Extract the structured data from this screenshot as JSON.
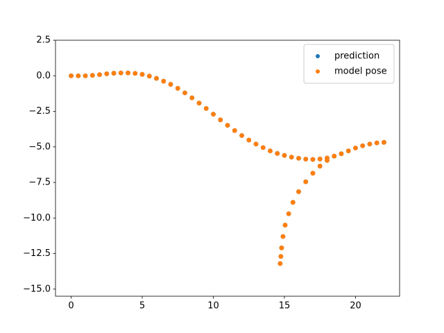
{
  "chart_data": {
    "type": "scatter",
    "xlim": [
      -1.1,
      23.1
    ],
    "ylim": [
      -15.5,
      2.5
    ],
    "xticks": [
      0,
      5,
      10,
      15,
      20
    ],
    "yticks": [
      2.5,
      {
        "value": 0,
        "label": "0.0"
      },
      {
        "value": -2.5,
        "label": "−2.5"
      },
      {
        "value": -5,
        "label": "−5.0"
      },
      {
        "value": -7.5,
        "label": "−7.5"
      },
      {
        "value": -10,
        "label": "−10.0"
      },
      {
        "value": -12.5,
        "label": "−12.5"
      },
      {
        "value": -15,
        "label": "−15.0"
      }
    ],
    "legend": "upper right",
    "series": [
      {
        "name": "prediction",
        "color": "#1f77b4",
        "x": [
          0,
          0.5,
          1,
          1.5,
          2,
          2.5,
          3,
          3.5,
          4,
          4.5,
          5,
          5.5,
          6,
          6.5,
          7,
          7.5,
          8,
          8.5,
          9,
          9.5,
          10,
          10.5,
          11,
          11.5,
          12,
          12.5,
          13,
          13.5,
          14,
          14.5,
          15,
          15.5,
          16,
          16.5,
          17,
          17.5,
          18,
          18.5,
          19,
          19.5,
          20,
          20.5,
          21,
          21.5,
          22,
          18,
          17.5,
          17,
          16.5,
          16,
          15.6,
          15.3,
          15.05,
          14.9,
          14.8,
          14.75,
          14.7
        ],
        "values": [
          0,
          0,
          0,
          0.03,
          0.08,
          0.14,
          0.18,
          0.2,
          0.2,
          0.17,
          0.1,
          -0.02,
          -0.18,
          -0.38,
          -0.6,
          -0.88,
          -1.2,
          -1.55,
          -1.92,
          -2.3,
          -2.7,
          -3.1,
          -3.48,
          -3.85,
          -4.2,
          -4.52,
          -4.8,
          -5.05,
          -5.28,
          -5.46,
          -5.6,
          -5.72,
          -5.8,
          -5.86,
          -5.88,
          -5.85,
          -5.78,
          -5.65,
          -5.48,
          -5.28,
          -5.08,
          -4.92,
          -4.8,
          -4.72,
          -4.68,
          -5.95,
          -6.35,
          -6.85,
          -7.45,
          -8.15,
          -8.9,
          -9.7,
          -10.5,
          -11.3,
          -12.1,
          -12.7,
          -13.2
        ]
      },
      {
        "name": "model pose",
        "color": "#ff7f0e",
        "x": [
          0,
          0.5,
          1,
          1.5,
          2,
          2.5,
          3,
          3.5,
          4,
          4.5,
          5,
          5.5,
          6,
          6.5,
          7,
          7.5,
          8,
          8.5,
          9,
          9.5,
          10,
          10.5,
          11,
          11.5,
          12,
          12.5,
          13,
          13.5,
          14,
          14.5,
          15,
          15.5,
          16,
          16.5,
          17,
          17.5,
          18,
          18.5,
          19,
          19.5,
          20,
          20.5,
          21,
          21.5,
          22,
          18,
          17.5,
          17,
          16.5,
          16,
          15.6,
          15.3,
          15.05,
          14.9,
          14.8,
          14.75,
          14.7
        ],
        "values": [
          0,
          0,
          0,
          0.03,
          0.08,
          0.14,
          0.18,
          0.2,
          0.2,
          0.17,
          0.1,
          -0.02,
          -0.18,
          -0.38,
          -0.6,
          -0.88,
          -1.2,
          -1.55,
          -1.92,
          -2.3,
          -2.7,
          -3.1,
          -3.48,
          -3.85,
          -4.2,
          -4.52,
          -4.8,
          -5.05,
          -5.28,
          -5.46,
          -5.6,
          -5.72,
          -5.8,
          -5.86,
          -5.88,
          -5.85,
          -5.78,
          -5.65,
          -5.48,
          -5.28,
          -5.08,
          -4.92,
          -4.8,
          -4.72,
          -4.68,
          -5.95,
          -6.35,
          -6.85,
          -7.45,
          -8.15,
          -8.9,
          -9.7,
          -10.5,
          -11.3,
          -12.1,
          -12.7,
          -13.2
        ]
      }
    ]
  }
}
